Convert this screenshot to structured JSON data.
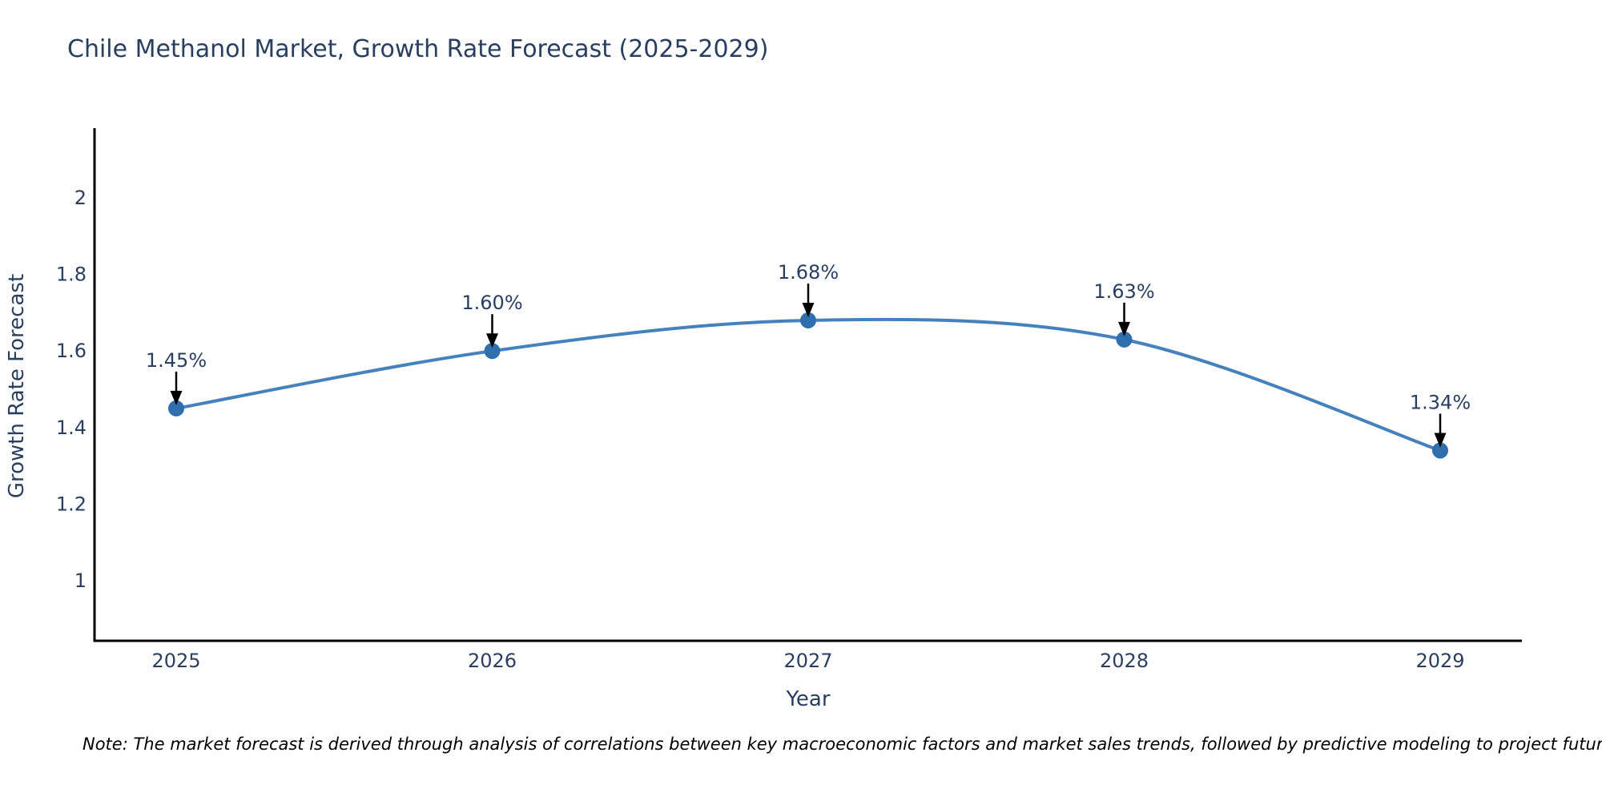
{
  "title": "Chile Methanol Market, Growth Rate Forecast (2025-2029)",
  "chart_data": {
    "type": "line",
    "title": "Chile Methanol Market, Growth Rate Forecast (2025-2029)",
    "categories": [
      "2025",
      "2026",
      "2027",
      "2028",
      "2029"
    ],
    "values": [
      1.45,
      1.6,
      1.68,
      1.63,
      1.34
    ],
    "point_labels": [
      "1.45%",
      "1.60%",
      "1.68%",
      "1.63%",
      "1.34%"
    ],
    "xlabel": "Year",
    "ylabel": "Growth Rate Forecast",
    "yticks": [
      1,
      1.2,
      1.4,
      1.6,
      1.8,
      2
    ],
    "ytick_labels": [
      "1",
      "1.2",
      "1.4",
      "1.6",
      "1.8",
      "2"
    ],
    "ylim": [
      0.85,
      2.19
    ],
    "grid": false,
    "legend": "none",
    "line_shape": "spline",
    "annotations": "value labels with down arrows above each point",
    "colors": {
      "line": "#4581bd",
      "marker": "#2f6fad",
      "axis": "#000000",
      "text": "#2a3f5f",
      "arrow": "#000000"
    }
  },
  "note": "Note: The market forecast is derived through analysis of correlations between key macroeconomic factors and market sales trends, followed by predictive modeling to project future sales"
}
